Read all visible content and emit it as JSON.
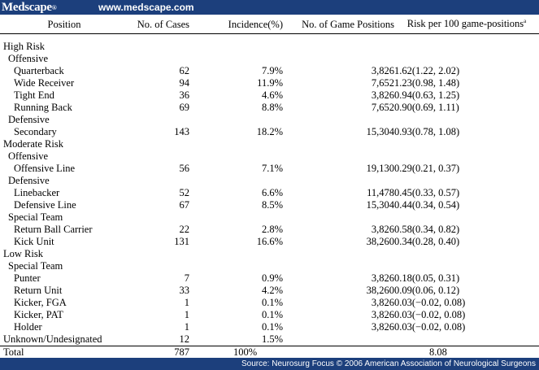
{
  "header": {
    "logo": "Medscape",
    "logo_mark": "®",
    "site_url": "www.medscape.com"
  },
  "table": {
    "columns": [
      "Position",
      "No. of Cases",
      "Incidence(%)",
      "No. of Game Positions",
      "Risk per 100 game-positions"
    ],
    "risk_footnote_mark": "a",
    "rows": [
      {
        "label": "High Risk",
        "level": 0
      },
      {
        "label": "Offensive",
        "level": 1
      },
      {
        "label": "Quarterback",
        "level": 2,
        "cases": "62",
        "incidence": "7.9%",
        "positions": "3,826",
        "risk": "1.62(1.22, 2.02)"
      },
      {
        "label": "Wide Receiver",
        "level": 2,
        "cases": "94",
        "incidence": "11.9%",
        "positions": "7,652",
        "risk": "1.23(0.98, 1.48)"
      },
      {
        "label": "Tight End",
        "level": 2,
        "cases": "36",
        "incidence": "4.6%",
        "positions": "3,826",
        "risk": "0.94(0.63, 1.25)"
      },
      {
        "label": "Running Back",
        "level": 2,
        "cases": "69",
        "incidence": "8.8%",
        "positions": "7,652",
        "risk": "0.90(0.69, 1.11)"
      },
      {
        "label": "Defensive",
        "level": 1
      },
      {
        "label": "Secondary",
        "level": 2,
        "cases": "143",
        "incidence": "18.2%",
        "positions": "15,304",
        "risk": "0.93(0.78, 1.08)"
      },
      {
        "label": "Moderate Risk",
        "level": 0
      },
      {
        "label": "Offensive",
        "level": 1
      },
      {
        "label": "Offensive Line",
        "level": 2,
        "cases": "56",
        "incidence": "7.1%",
        "positions": "19,130",
        "risk": "0.29(0.21, 0.37)"
      },
      {
        "label": "Defensive",
        "level": 1
      },
      {
        "label": "Linebacker",
        "level": 2,
        "cases": "52",
        "incidence": "6.6%",
        "positions": "11,478",
        "risk": "0.45(0.33, 0.57)"
      },
      {
        "label": "Defensive Line",
        "level": 2,
        "cases": "67",
        "incidence": "8.5%",
        "positions": "15,304",
        "risk": "0.44(0.34, 0.54)"
      },
      {
        "label": "Special Team",
        "level": 1
      },
      {
        "label": "Return Ball Carrier",
        "level": 2,
        "cases": "22",
        "incidence": "2.8%",
        "positions": "3,826",
        "risk": "0.58(0.34, 0.82)"
      },
      {
        "label": "Kick Unit",
        "level": 2,
        "cases": "131",
        "incidence": "16.6%",
        "positions": "38,260",
        "risk": "0.34(0.28, 0.40)"
      },
      {
        "label": "Low Risk",
        "level": 0
      },
      {
        "label": "Special Team",
        "level": 1
      },
      {
        "label": "Punter",
        "level": 2,
        "cases": "7",
        "incidence": "0.9%",
        "positions": "3,826",
        "risk": "0.18(0.05, 0.31)"
      },
      {
        "label": "Return Unit",
        "level": 2,
        "cases": "33",
        "incidence": "4.2%",
        "positions": "38,260",
        "risk": "0.09(0.06, 0.12)"
      },
      {
        "label": "Kicker, FGA",
        "level": 2,
        "cases": "1",
        "incidence": "0.1%",
        "positions": "3,826",
        "risk": "0.03(−0.02, 0.08)"
      },
      {
        "label": "Kicker, PAT",
        "level": 2,
        "cases": "1",
        "incidence": "0.1%",
        "positions": "3,826",
        "risk": "0.03(−0.02, 0.08)"
      },
      {
        "label": "Holder",
        "level": 2,
        "cases": "1",
        "incidence": "0.1%",
        "positions": "3,826",
        "risk": "0.03(−0.02, 0.08)"
      },
      {
        "label": "Unknown/Undesignated",
        "level": 0,
        "cases": "12",
        "incidence": "1.5%",
        "positions": "",
        "risk": ""
      }
    ],
    "total": {
      "label": "Total",
      "cases": "787",
      "incidence": "100%",
      "positions": "",
      "risk": "8.08"
    }
  },
  "footer": {
    "source": "Source: Neurosurg Focus © 2006 American Association of Neurological Surgeons"
  },
  "colors": {
    "banner": "#1c3f7c",
    "banner_text": "#ffffff"
  }
}
